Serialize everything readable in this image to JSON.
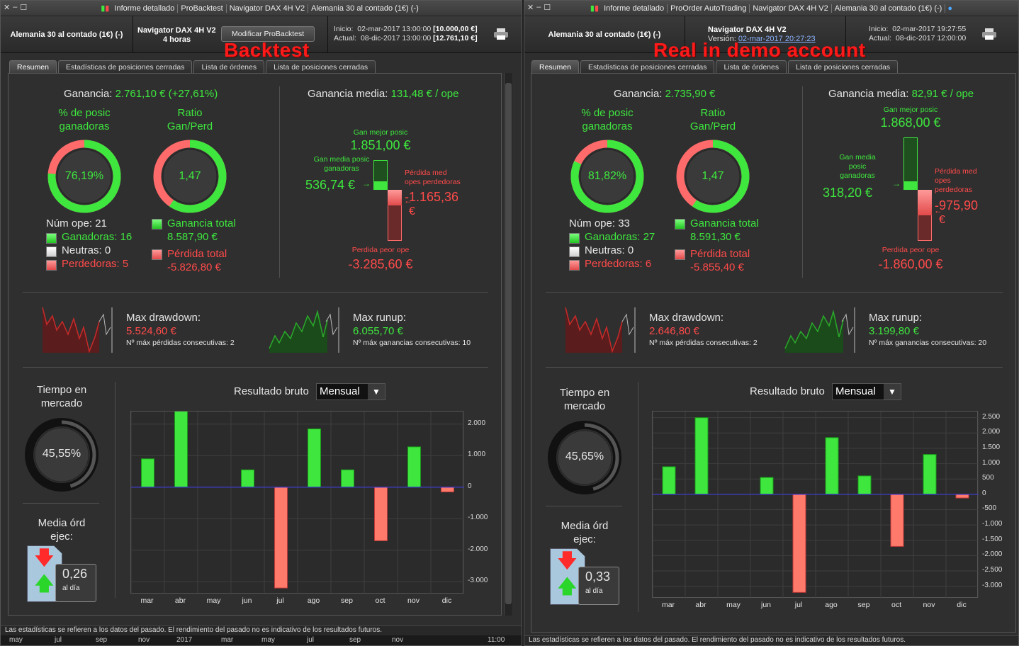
{
  "colors": {
    "green": "#3ee63e",
    "red": "#ff4a4a",
    "bg": "#2f2f2f",
    "title": "#ff1a1a"
  },
  "shared": {
    "months": [
      "mar",
      "abr",
      "may",
      "jun",
      "jul",
      "ago",
      "sep",
      "oct",
      "nov",
      "dic"
    ],
    "tabs": [
      "Resumen",
      "Estadísticas de posiciones cerradas",
      "Lista de órdenes",
      "Lista de posiciones cerradas"
    ],
    "footer": "Las estadísticas se refieren a los datos del pasado. El rendimiento del pasado no es indicativo de los resultados futuros.",
    "labels": {
      "ganancia": "Ganancia:",
      "ganancia_media": "Ganancia media:",
      "pct_posic_1": "% de posic",
      "pct_posic_2": "ganadoras",
      "ratio_1": "Ratio",
      "ratio_2": "Gan/Perd",
      "num_ope": "Núm ope:",
      "ganadoras": "Ganadoras:",
      "neutras": "Neutras:",
      "perdedoras": "Perdedoras:",
      "ganancia_total": "Ganancia total",
      "perdida_total": "Pérdida total",
      "gan_mejor": "Gan mejor posic",
      "perdida_peor": "Perdida peor ope",
      "max_drawdown": "Max drawdown:",
      "max_runup": "Max runup:",
      "max_perdidas": "Nº máx pérdidas consecutivas:",
      "max_ganancias": "Nº máx ganancias consecutivas:",
      "tiempo_1": "Tiempo en",
      "tiempo_2": "mercado",
      "media_ord_1": "Media órd",
      "media_ord_2": "ejec:",
      "al_dia": "al día",
      "resultado_bruto": "Resultado bruto",
      "mensual": "Mensual",
      "inicio": "Inicio:",
      "actual": "Actual:",
      "sep": "|"
    }
  },
  "backtest": {
    "title_segments": [
      "Informe detallado",
      "ProBacktest",
      "Navigator DAX 4H V2",
      "Alemania 30 al contado (1€) (-)"
    ],
    "instrument": "Alemania 30 al contado (1€) (-)",
    "strategy": "Navigator DAX 4H V2",
    "timeframe": "4 horas",
    "modify_button": "Modificar ProBacktest",
    "inicio_date": "02-mar-2017 13:00:00",
    "inicio_value": "[10.000,00 €]",
    "actual_date": "08-dic-2017 13:00:00",
    "actual_value": "[12.761,10 €]",
    "overlay": "Backtest",
    "ganancia": "2.761,10 € (+27,61%)",
    "ganancia_media": "131,48 € / ope",
    "pct_ganadoras": "76,19%",
    "pct_fraction": 0.7619,
    "ratio": "1,47",
    "ratio_fraction": 0.595,
    "num_ope": "21",
    "ganadoras": "16",
    "neutras": "0",
    "perdedoras": "5",
    "ganancia_total": "8.587,90 €",
    "perdida_total": "-5.826,80 €",
    "gan_mejor": "1.851,00 €",
    "gan_media_label": [
      "Gan media posic",
      "ganadoras"
    ],
    "gan_media": "536,74 €",
    "perdida_med_label": [
      "Pérdida med",
      "opes perdedoras"
    ],
    "perdida_med": "-1.165,36",
    "perdida_med_unit": "€",
    "perdida_peor": "-3.285,60 €",
    "max_drawdown": "5.524,60 €",
    "max_perdidas_consec": "2",
    "max_runup": "6.055,70 €",
    "max_ganancias_consec": "10",
    "tiempo_mercado": "45,55%",
    "tiempo_fraction": 0.4555,
    "media_ord": "0,26",
    "chart_data": {
      "type": "bar",
      "title": "Resultado bruto",
      "categories": [
        "mar",
        "abr",
        "may",
        "jun",
        "jul",
        "ago",
        "sep",
        "oct",
        "nov",
        "dic"
      ],
      "values": [
        900,
        2500,
        0,
        550,
        -3200,
        1850,
        550,
        -1700,
        1280,
        -150
      ],
      "ylim": [
        -3400,
        2400
      ],
      "yticks": [
        2000,
        1000,
        0,
        -1000,
        -2000,
        -3000
      ],
      "ytick_labels": [
        "2.000",
        "1.000",
        "0",
        "-1.000",
        "-2.000",
        "-3.000"
      ]
    }
  },
  "live": {
    "title_segments": [
      "Informe detallado",
      "ProOrder AutoTrading",
      "Navigator DAX 4H V2",
      "Alemania 30 al contado (1€) (-)"
    ],
    "instrument": "Alemania 30 al contado (1€) (-)",
    "strategy": "Navigator DAX 4H V2",
    "version_label": "Versión:",
    "version": "02-mar-2017 20:27:23",
    "inicio_date": "02-mar-2017 19:27:55",
    "actual_date": "08-dic-2017 12:00:00",
    "overlay": "Real in demo account",
    "ganancia": "2.735,90 €",
    "ganancia_media": "82,91 € / ope",
    "pct_ganadoras": "81,82%",
    "pct_fraction": 0.8182,
    "ratio": "1,47",
    "ratio_fraction": 0.595,
    "num_ope": "33",
    "ganadoras": "27",
    "neutras": "0",
    "perdedoras": "6",
    "ganancia_total": "8.591,30 €",
    "perdida_total": "-5.855,40 €",
    "gan_mejor": "1.868,00 €",
    "gan_media_label": [
      "Gan media",
      "posic",
      "ganadoras"
    ],
    "gan_media": "318,20 €",
    "perdida_med_label": [
      "Pérdida med",
      "opes",
      "perdedoras"
    ],
    "perdida_med": "-975,90",
    "perdida_med_unit": "€",
    "perdida_peor": "-1.860,00 €",
    "max_drawdown": "2.646,80 €",
    "max_perdidas_consec": "2",
    "max_runup": "3.199,80 €",
    "max_ganancias_consec": "20",
    "tiempo_mercado": "45,65%",
    "tiempo_fraction": 0.4565,
    "media_ord": "0,33",
    "chart_data": {
      "type": "bar",
      "title": "Resultado bruto",
      "categories": [
        "mar",
        "abr",
        "may",
        "jun",
        "jul",
        "ago",
        "sep",
        "oct",
        "nov",
        "dic"
      ],
      "values": [
        900,
        2500,
        0,
        550,
        -3200,
        1850,
        600,
        -1700,
        1300,
        -120
      ],
      "ylim": [
        -3400,
        2700
      ],
      "yticks": [
        2500,
        2000,
        1500,
        1000,
        500,
        0,
        -500,
        -1000,
        -1500,
        -2000,
        -2500,
        -3000
      ],
      "ytick_labels": [
        "2.500",
        "2.000",
        "1.500",
        "1.000",
        "500",
        "0",
        "-500",
        "-1.000",
        "-1.500",
        "-2.000",
        "-2.500",
        "-3.000"
      ]
    }
  },
  "bottom_axis": [
    "may",
    "jul",
    "sep",
    "nov",
    "2017",
    "mar",
    "may",
    "jul",
    "sep",
    "nov",
    "11:00"
  ]
}
